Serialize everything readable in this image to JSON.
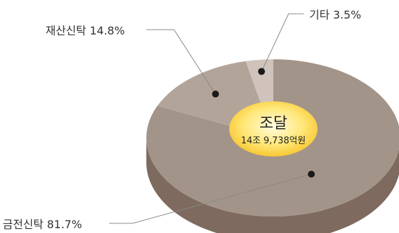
{
  "chart_data": {
    "type": "pie",
    "style": "3d",
    "categories": [
      "금전신탁",
      "재산신탁",
      "기타"
    ],
    "values": [
      81.7,
      14.8,
      3.5
    ],
    "unit": "%",
    "labels": [
      "금전신탁 81.7%",
      "재산신탁 14.8%",
      "기타 3.5%"
    ],
    "center_label": {
      "title": "조달",
      "subtitle": "14조 9,738억원"
    }
  },
  "colors": {
    "slice_top": [
      "#a39489",
      "#b3a49a",
      "#cfc3bb"
    ],
    "slice_side": [
      "#7e6a5e",
      "#8a776b",
      "#a79a91"
    ],
    "center_gradient": [
      "#fffbe0",
      "#ffe87a",
      "#f6c126"
    ],
    "leader_line": "#888888",
    "dot": "#1a1a1a"
  }
}
